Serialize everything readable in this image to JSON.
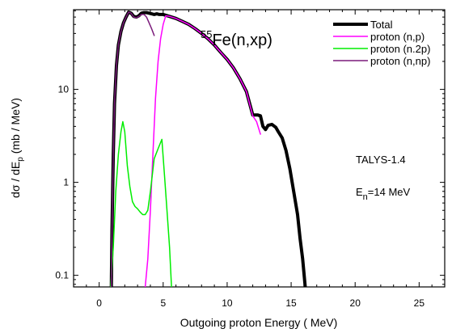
{
  "chart_data": {
    "type": "line",
    "title": "",
    "annotations": {
      "reaction": {
        "sup": "55",
        "main": "Fe(n,xp)"
      },
      "code": "TALYS-1.4",
      "energy": {
        "pre": "E",
        "sub": "n",
        "post": "=14 MeV"
      }
    },
    "xlabel": "Outgoing proton Energy ( MeV)",
    "ylabel": {
      "pre": "dσ / dE",
      "sub": "p",
      "post": " (mb / MeV)"
    },
    "xlim": [
      -2,
      27
    ],
    "ylim": [
      0.075,
      72
    ],
    "yscale": "log",
    "x_ticks": [
      {
        "value": 0,
        "label": "0"
      },
      {
        "value": 5,
        "label": "5"
      },
      {
        "value": 10,
        "label": "10"
      },
      {
        "value": 15,
        "label": "15"
      },
      {
        "value": 20,
        "label": "20"
      },
      {
        "value": 25,
        "label": "25"
      }
    ],
    "y_ticks": [
      {
        "value": 0.1,
        "label": "0.1"
      },
      {
        "value": 1,
        "label": "1"
      },
      {
        "value": 10,
        "label": "10"
      }
    ],
    "legend_position": "top-right",
    "series": [
      {
        "name": "Total",
        "color": "#000000",
        "width": 4,
        "points": [
          [
            0.95,
            0.075
          ],
          [
            1.0,
            0.3
          ],
          [
            1.1,
            2
          ],
          [
            1.2,
            7
          ],
          [
            1.35,
            18
          ],
          [
            1.5,
            30
          ],
          [
            1.7,
            42
          ],
          [
            1.9,
            52
          ],
          [
            2.1,
            60
          ],
          [
            2.3,
            68
          ],
          [
            2.5,
            66
          ],
          [
            2.7,
            61
          ],
          [
            2.9,
            60
          ],
          [
            3.1,
            62
          ],
          [
            3.3,
            66
          ],
          [
            3.5,
            67
          ],
          [
            3.7,
            67
          ],
          [
            3.9,
            66
          ],
          [
            4.1,
            65
          ],
          [
            4.3,
            64
          ],
          [
            4.5,
            65
          ],
          [
            4.7,
            64
          ],
          [
            5.0,
            64
          ],
          [
            5.5,
            61
          ],
          [
            6,
            58
          ],
          [
            6.5,
            54
          ],
          [
            7,
            50
          ],
          [
            7.5,
            45
          ],
          [
            8,
            40
          ],
          [
            8.5,
            35
          ],
          [
            9,
            30
          ],
          [
            9.5,
            25
          ],
          [
            10,
            21
          ],
          [
            10.5,
            17
          ],
          [
            11,
            13
          ],
          [
            11.5,
            9.5
          ],
          [
            12,
            5.3
          ],
          [
            12.4,
            5.3
          ],
          [
            12.6,
            5.2
          ],
          [
            12.8,
            4.0
          ],
          [
            13.0,
            3.7
          ],
          [
            13.2,
            4.1
          ],
          [
            13.5,
            4.2
          ],
          [
            13.8,
            3.9
          ],
          [
            14.0,
            3.5
          ],
          [
            14.3,
            3.0
          ],
          [
            14.6,
            2.2
          ],
          [
            14.9,
            1.4
          ],
          [
            15.2,
            0.8
          ],
          [
            15.5,
            0.45
          ],
          [
            15.7,
            0.25
          ],
          [
            15.9,
            0.15
          ],
          [
            16.1,
            0.075
          ]
        ]
      },
      {
        "name": "proton (n,p)",
        "color": "#ff00ff",
        "width": 1.5,
        "points": [
          [
            3.6,
            0.075
          ],
          [
            3.8,
            0.15
          ],
          [
            4.0,
            0.5
          ],
          [
            4.2,
            2
          ],
          [
            4.4,
            8
          ],
          [
            4.6,
            20
          ],
          [
            4.8,
            35
          ],
          [
            5.0,
            50
          ],
          [
            5.2,
            62
          ],
          [
            5.5,
            61
          ],
          [
            6,
            58
          ],
          [
            6.5,
            54
          ],
          [
            7,
            50
          ],
          [
            7.5,
            45
          ],
          [
            8,
            40
          ],
          [
            8.5,
            35
          ],
          [
            9,
            30
          ],
          [
            9.5,
            25
          ],
          [
            10,
            21
          ],
          [
            10.5,
            17
          ],
          [
            11,
            13
          ],
          [
            11.5,
            9.5
          ],
          [
            12,
            5.2
          ],
          [
            12.3,
            4.5
          ],
          [
            12.6,
            3.3
          ]
        ]
      },
      {
        "name": "proton (n.2p)",
        "color": "#00ee00",
        "width": 1.5,
        "points": [
          [
            0.9,
            0.075
          ],
          [
            1.1,
            0.2
          ],
          [
            1.3,
            0.8
          ],
          [
            1.5,
            2
          ],
          [
            1.7,
            3.5
          ],
          [
            1.85,
            4.5
          ],
          [
            2.0,
            3.5
          ],
          [
            2.2,
            1.5
          ],
          [
            2.4,
            0.9
          ],
          [
            2.6,
            0.62
          ],
          [
            2.8,
            0.55
          ],
          [
            3.0,
            0.52
          ],
          [
            3.2,
            0.48
          ],
          [
            3.4,
            0.45
          ],
          [
            3.6,
            0.45
          ],
          [
            3.8,
            0.5
          ],
          [
            4.0,
            0.8
          ],
          [
            4.3,
            1.8
          ],
          [
            4.6,
            2.3
          ],
          [
            4.9,
            2.9
          ],
          [
            5.1,
            1.2
          ],
          [
            5.3,
            0.5
          ],
          [
            5.5,
            0.2
          ],
          [
            5.65,
            0.075
          ]
        ]
      },
      {
        "name": "proton (n,np)",
        "color": "#7a1a7a",
        "width": 1.5,
        "points": [
          [
            0.95,
            0.075
          ],
          [
            1.0,
            0.3
          ],
          [
            1.1,
            2
          ],
          [
            1.2,
            7
          ],
          [
            1.35,
            18
          ],
          [
            1.5,
            30
          ],
          [
            1.7,
            42
          ],
          [
            1.9,
            52
          ],
          [
            2.1,
            60
          ],
          [
            2.3,
            68
          ],
          [
            2.5,
            66
          ],
          [
            2.7,
            60
          ],
          [
            2.9,
            59
          ],
          [
            3.1,
            61
          ],
          [
            3.3,
            64
          ],
          [
            3.5,
            64
          ],
          [
            3.7,
            60
          ],
          [
            3.9,
            52
          ],
          [
            4.1,
            45
          ],
          [
            4.3,
            38
          ]
        ]
      }
    ]
  }
}
